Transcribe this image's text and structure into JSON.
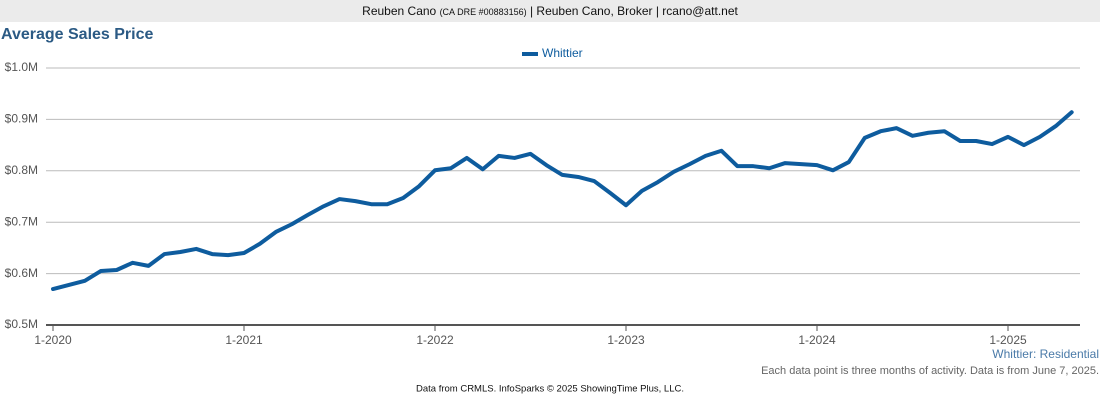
{
  "header": {
    "name": "Reuben Cano",
    "license": "(CA DRE #00883156)",
    "rest": "| Reuben Cano, Broker | rcano@att.net"
  },
  "chart_data": {
    "type": "line",
    "title": "Average Sales Price",
    "categories": [
      "1-2020",
      null,
      null,
      null,
      null,
      null,
      null,
      null,
      null,
      null,
      null,
      null,
      "1-2021",
      null,
      null,
      null,
      null,
      null,
      null,
      null,
      null,
      null,
      null,
      null,
      "1-2022",
      null,
      null,
      null,
      null,
      null,
      null,
      null,
      null,
      null,
      null,
      null,
      "1-2023",
      null,
      null,
      null,
      null,
      null,
      null,
      null,
      null,
      null,
      null,
      null,
      "1-2024",
      null,
      null,
      null,
      null,
      null,
      null,
      null,
      null,
      null,
      null,
      null,
      "1-2025",
      null,
      null,
      null,
      null
    ],
    "series": [
      {
        "name": "Whittier",
        "color": "#0e5c9e",
        "values": [
          0.57,
          0.578,
          0.586,
          0.605,
          0.607,
          0.621,
          0.615,
          0.638,
          0.642,
          0.648,
          0.638,
          0.636,
          0.64,
          0.658,
          0.681,
          0.696,
          0.714,
          0.731,
          0.745,
          0.741,
          0.735,
          0.735,
          0.747,
          0.77,
          0.801,
          0.805,
          0.825,
          0.803,
          0.829,
          0.825,
          0.833,
          0.811,
          0.792,
          0.788,
          0.78,
          0.757,
          0.733,
          0.761,
          0.778,
          0.798,
          0.813,
          0.829,
          0.839,
          0.809,
          0.809,
          0.805,
          0.815,
          0.813,
          0.811,
          0.801,
          0.817,
          0.864,
          0.877,
          0.883,
          0.868,
          0.874,
          0.877,
          0.858,
          0.858,
          0.852,
          0.866,
          0.85,
          0.866,
          0.887,
          0.914
        ]
      }
    ],
    "ylim": [
      0.5,
      1.0
    ],
    "yticks": [
      {
        "value": 0.5,
        "label": "$0.5M"
      },
      {
        "value": 0.6,
        "label": "$0.6M"
      },
      {
        "value": 0.7,
        "label": "$0.7M"
      },
      {
        "value": 0.8,
        "label": "$0.8M"
      },
      {
        "value": 0.9,
        "label": "$0.9M"
      },
      {
        "value": 1.0,
        "label": "$1.0M"
      }
    ],
    "grid": true,
    "legend": "top",
    "annotations": {
      "segment": "Whittier: Residential",
      "note": "Each data point is three months of activity. Data is from June 7, 2025.",
      "source": "Data from CRMLS. InfoSparks © 2025 ShowingTime Plus, LLC."
    }
  }
}
